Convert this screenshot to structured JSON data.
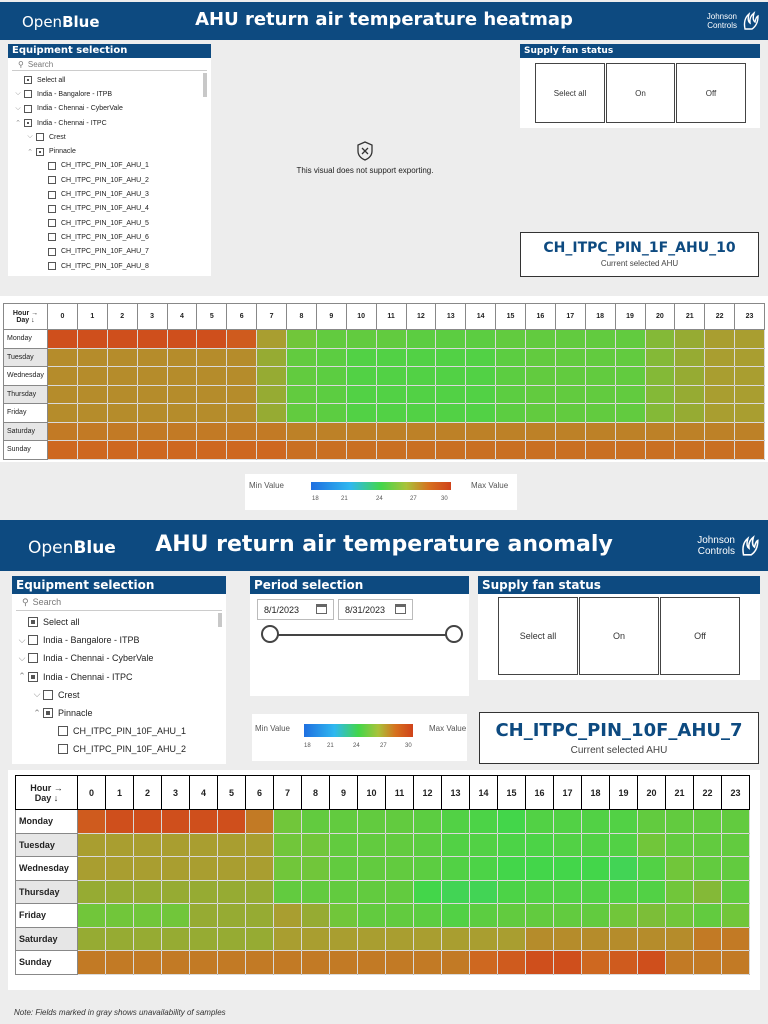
{
  "page1": {
    "brand": {
      "part1": "Open",
      "part2": "Blue"
    },
    "title": "AHU return air temperature heatmap",
    "logo": {
      "line1": "Johnson",
      "line2": "Controls"
    },
    "equipment": {
      "title": "Equipment selection",
      "search_placeholder": "Search",
      "items": [
        {
          "label": "Select all",
          "chev": "",
          "level": 0,
          "state": "partial"
        },
        {
          "label": "India - Bangalore - ITPB",
          "chev": "⌵",
          "level": 0,
          "state": "empty"
        },
        {
          "label": "India - Chennai - CyberVale",
          "chev": "⌵",
          "level": 0,
          "state": "empty"
        },
        {
          "label": "India - Chennai - ITPC",
          "chev": "⌃",
          "level": 0,
          "state": "partial"
        },
        {
          "label": "Crest",
          "chev": "⌵",
          "level": 1,
          "state": "empty"
        },
        {
          "label": "Pinnacle",
          "chev": "⌃",
          "level": 1,
          "state": "partial"
        },
        {
          "label": "CH_ITPC_PIN_10F_AHU_1",
          "chev": "",
          "level": 2,
          "state": "empty"
        },
        {
          "label": "CH_ITPC_PIN_10F_AHU_2",
          "chev": "",
          "level": 2,
          "state": "empty"
        },
        {
          "label": "CH_ITPC_PIN_10F_AHU_3",
          "chev": "",
          "level": 2,
          "state": "empty"
        },
        {
          "label": "CH_ITPC_PIN_10F_AHU_4",
          "chev": "",
          "level": 2,
          "state": "empty"
        },
        {
          "label": "CH_ITPC_PIN_10F_AHU_5",
          "chev": "",
          "level": 2,
          "state": "empty"
        },
        {
          "label": "CH_ITPC_PIN_10F_AHU_6",
          "chev": "",
          "level": 2,
          "state": "empty"
        },
        {
          "label": "CH_ITPC_PIN_10F_AHU_7",
          "chev": "",
          "level": 2,
          "state": "empty"
        },
        {
          "label": "CH_ITPC_PIN_10F_AHU_8",
          "chev": "",
          "level": 2,
          "state": "empty"
        }
      ]
    },
    "no_export_message": "This visual does not support exporting.",
    "no_export_icon": "shield-x-icon",
    "fan": {
      "title": "Supply fan status",
      "buttons": [
        "Select all",
        "On",
        "Off"
      ]
    },
    "selected": {
      "name": "CH_ITPC_PIN_1F_AHU_10",
      "subtitle": "Current selected AHU"
    },
    "legend": {
      "min": "Min Value",
      "max": "Max Value",
      "ticks": [
        "18",
        "21",
        "24",
        "27",
        "30"
      ]
    },
    "heatmap": {
      "corner_line1": "Hour →",
      "corner_line2": "Day ↓",
      "hours": [
        "0",
        "1",
        "2",
        "3",
        "4",
        "5",
        "6",
        "7",
        "8",
        "9",
        "10",
        "11",
        "12",
        "13",
        "14",
        "15",
        "16",
        "17",
        "18",
        "19",
        "20",
        "21",
        "22",
        "23"
      ],
      "days": [
        "Monday",
        "Tuesday",
        "Wednesday",
        "Thursday",
        "Friday",
        "Saturday",
        "Sunday"
      ],
      "day_shaded": [
        false,
        true,
        false,
        true,
        false,
        true,
        false
      ],
      "values": [
        [
          29.5,
          29.5,
          29.5,
          29.5,
          29.5,
          29.5,
          29.0,
          27.0,
          25.5,
          25.0,
          25.0,
          25.0,
          24.8,
          24.8,
          24.8,
          25.0,
          25.0,
          25.0,
          25.0,
          25.0,
          26.0,
          26.5,
          27.0,
          27.0
        ],
        [
          27.5,
          27.5,
          27.5,
          27.5,
          27.5,
          27.5,
          27.5,
          26.5,
          25.0,
          24.8,
          24.5,
          24.5,
          24.5,
          24.5,
          24.5,
          24.8,
          25.0,
          25.0,
          25.0,
          25.0,
          26.0,
          26.5,
          27.0,
          27.0
        ],
        [
          27.5,
          27.5,
          27.5,
          27.5,
          27.5,
          27.5,
          27.5,
          26.5,
          25.0,
          24.8,
          24.5,
          24.5,
          24.5,
          24.5,
          24.5,
          24.8,
          25.0,
          25.0,
          25.0,
          25.0,
          26.0,
          26.5,
          27.0,
          27.0
        ],
        [
          27.5,
          27.5,
          27.5,
          27.5,
          27.5,
          27.5,
          27.5,
          26.5,
          25.0,
          24.8,
          24.5,
          24.5,
          24.5,
          24.5,
          24.5,
          24.8,
          25.0,
          25.0,
          25.0,
          25.0,
          26.0,
          26.5,
          27.0,
          27.0
        ],
        [
          27.5,
          27.5,
          27.5,
          27.5,
          27.5,
          27.5,
          27.5,
          26.5,
          25.0,
          24.8,
          24.5,
          24.5,
          24.5,
          24.5,
          24.5,
          24.8,
          25.0,
          25.0,
          25.0,
          25.0,
          26.0,
          26.5,
          27.0,
          27.0
        ],
        [
          28.0,
          28.0,
          28.0,
          28.0,
          28.0,
          28.0,
          28.0,
          28.0,
          27.8,
          27.8,
          27.8,
          27.8,
          27.8,
          27.8,
          27.8,
          27.8,
          27.8,
          27.8,
          27.8,
          27.8,
          27.8,
          27.8,
          27.8,
          27.8
        ],
        [
          28.5,
          28.5,
          28.5,
          28.5,
          28.5,
          28.5,
          28.5,
          28.5,
          28.3,
          28.3,
          28.3,
          28.3,
          28.3,
          28.3,
          28.3,
          28.3,
          28.3,
          28.3,
          28.3,
          28.3,
          28.3,
          28.3,
          28.3,
          28.3
        ]
      ]
    }
  },
  "page2": {
    "brand": {
      "part1": "Open",
      "part2": "Blue"
    },
    "title": "AHU return air temperature anomaly",
    "logo": {
      "line1": "Johnson",
      "line2": "Controls"
    },
    "equipment": {
      "title": "Equipment selection",
      "search_placeholder": "Search",
      "items": [
        {
          "label": "Select all",
          "chev": "",
          "level": 0,
          "state": "partial"
        },
        {
          "label": "India - Bangalore - ITPB",
          "chev": "⌵",
          "level": 0,
          "state": "empty"
        },
        {
          "label": "India - Chennai - CyberVale",
          "chev": "⌵",
          "level": 0,
          "state": "empty"
        },
        {
          "label": "India - Chennai - ITPC",
          "chev": "⌃",
          "level": 0,
          "state": "partial"
        },
        {
          "label": "Crest",
          "chev": "⌵",
          "level": 1,
          "state": "empty"
        },
        {
          "label": "Pinnacle",
          "chev": "⌃",
          "level": 1,
          "state": "partial"
        },
        {
          "label": "CH_ITPC_PIN_10F_AHU_1",
          "chev": "",
          "level": 2,
          "state": "empty"
        },
        {
          "label": "CH_ITPC_PIN_10F_AHU_2",
          "chev": "",
          "level": 2,
          "state": "empty"
        }
      ]
    },
    "period": {
      "title": "Period selection",
      "start": "8/1/2023",
      "end": "8/31/2023",
      "slider_start": 0,
      "slider_end": 1
    },
    "fan": {
      "title": "Supply fan status",
      "buttons": [
        "Select all",
        "On",
        "Off"
      ]
    },
    "selected": {
      "name": "CH_ITPC_PIN_10F_AHU_7",
      "subtitle": "Current selected AHU"
    },
    "legend": {
      "min": "Min Value",
      "max": "Max Value",
      "ticks": [
        "18",
        "21",
        "24",
        "27",
        "30"
      ]
    },
    "note": "Note: Fields marked in gray shows unavailability of samples",
    "heatmap": {
      "corner_line1": "Hour →",
      "corner_line2": "Day ↓",
      "hours": [
        "0",
        "1",
        "2",
        "3",
        "4",
        "5",
        "6",
        "7",
        "8",
        "9",
        "10",
        "11",
        "12",
        "13",
        "14",
        "15",
        "16",
        "17",
        "18",
        "19",
        "20",
        "21",
        "22",
        "23"
      ],
      "days": [
        "Monday",
        "Tuesday",
        "Wednesday",
        "Thursday",
        "Friday",
        "Saturday",
        "Sunday"
      ],
      "day_shaded": [
        false,
        true,
        false,
        true,
        false,
        true,
        false
      ],
      "values": [
        [
          29.0,
          29.5,
          29.5,
          29.5,
          29.5,
          29.5,
          28.0,
          25.5,
          25.0,
          25.0,
          25.0,
          25.0,
          24.8,
          24.5,
          24.3,
          24.0,
          24.5,
          24.5,
          24.5,
          24.5,
          25.0,
          25.0,
          25.0,
          25.0
        ],
        [
          27.0,
          27.0,
          27.0,
          27.0,
          27.0,
          27.0,
          27.0,
          25.5,
          25.5,
          25.0,
          25.0,
          25.0,
          24.8,
          24.5,
          24.5,
          24.3,
          24.3,
          24.5,
          24.5,
          24.5,
          25.5,
          25.0,
          25.0,
          25.0
        ],
        [
          27.0,
          27.0,
          27.0,
          27.0,
          27.0,
          27.0,
          27.0,
          25.5,
          25.5,
          25.0,
          25.0,
          25.0,
          24.8,
          24.5,
          24.3,
          24.0,
          24.0,
          24.0,
          24.0,
          23.8,
          24.5,
          25.5,
          25.0,
          25.0
        ],
        [
          26.5,
          26.5,
          26.5,
          26.5,
          26.5,
          26.5,
          26.5,
          25.0,
          25.0,
          25.0,
          25.0,
          25.0,
          24.0,
          23.8,
          23.8,
          24.3,
          24.5,
          24.5,
          24.5,
          24.5,
          24.5,
          25.5,
          26.0,
          25.0
        ],
        [
          25.5,
          25.5,
          25.5,
          25.5,
          26.5,
          26.5,
          26.5,
          27.0,
          26.5,
          25.5,
          25.0,
          25.0,
          24.8,
          24.5,
          24.8,
          25.0,
          25.0,
          25.0,
          25.0,
          25.5,
          25.8,
          25.5,
          25.0,
          25.5
        ],
        [
          26.5,
          26.5,
          26.5,
          26.5,
          26.5,
          26.5,
          26.5,
          27.0,
          27.0,
          27.0,
          27.0,
          27.0,
          27.0,
          27.0,
          27.0,
          27.0,
          27.5,
          27.5,
          27.5,
          27.5,
          27.5,
          27.5,
          28.0,
          28.0
        ],
        [
          28.0,
          28.0,
          28.0,
          28.0,
          28.0,
          28.0,
          28.0,
          28.0,
          28.0,
          28.0,
          28.0,
          28.0,
          28.0,
          28.0,
          28.5,
          29.0,
          29.5,
          29.5,
          28.5,
          29.0,
          29.5,
          28.0,
          28.0,
          28.0
        ]
      ]
    }
  }
}
